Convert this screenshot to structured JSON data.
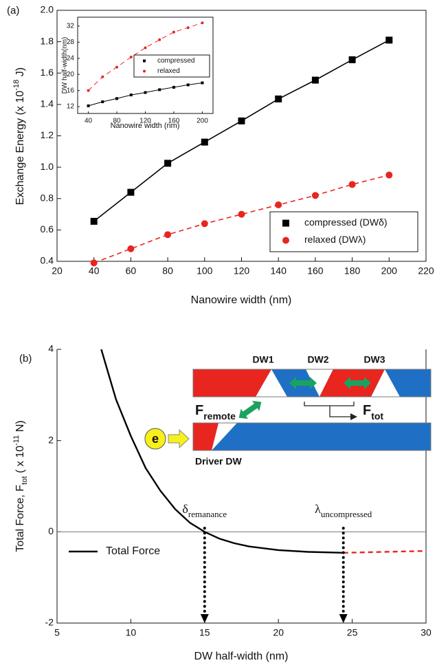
{
  "chart_data": [
    {
      "type": "line",
      "panel": "(a)",
      "xlabel": "Nanowire width (nm)",
      "ylabel": [
        "Exchange Energy (x 10",
        "-18",
        " J)"
      ],
      "x": [
        40,
        60,
        80,
        100,
        120,
        140,
        160,
        180,
        200
      ],
      "series": [
        {
          "name": "compressed (DWδ)",
          "color": "#000000",
          "marker": "square",
          "dash": false,
          "values": [
            0.655,
            0.84,
            1.025,
            1.16,
            1.295,
            1.435,
            1.555,
            1.685,
            1.81
          ]
        },
        {
          "name": "relaxed (DWλ)",
          "color": "#e8251f",
          "marker": "circle",
          "dash": true,
          "values": [
            0.39,
            0.48,
            0.57,
            0.64,
            0.7,
            0.76,
            0.82,
            0.89,
            0.95
          ]
        }
      ],
      "xlim": [
        20,
        220
      ],
      "xticks": [
        20,
        40,
        60,
        80,
        100,
        120,
        140,
        160,
        180,
        200,
        220
      ],
      "ylim": [
        0.4,
        2.0
      ],
      "yticks": [
        0.4,
        0.6,
        0.8,
        {
          "value": 1,
          "label": "1.0"
        },
        1.2,
        1.4,
        1.6,
        1.8,
        {
          "value": 2,
          "label": "2.0"
        }
      ],
      "legend": "lower right"
    },
    {
      "type": "line",
      "xlabel": "Nanowire width (nm)",
      "ylabel": [
        "DW half-width(nm)"
      ],
      "x": [
        40,
        60,
        80,
        100,
        120,
        140,
        160,
        180,
        200
      ],
      "series": [
        {
          "name": "compressed",
          "color": "#000000",
          "marker": "square",
          "dash": false,
          "values": [
            12.2,
            13.2,
            14,
            14.9,
            15.5,
            16.2,
            16.8,
            17.4,
            17.9
          ]
        },
        {
          "name": "relaxed",
          "color": "#e8251f",
          "marker": "circle",
          "dash": true,
          "values": [
            16,
            19.4,
            21.8,
            24.3,
            26.6,
            28.6,
            30.5,
            31.6,
            32.8
          ]
        }
      ],
      "xlim": [
        25,
        215
      ],
      "xticks": [
        40,
        80,
        120,
        160,
        200
      ],
      "ylim": [
        10.3,
        34.2
      ],
      "yticks": [
        12,
        16,
        20,
        24,
        28,
        32
      ],
      "legend": "center right"
    },
    {
      "type": "line",
      "panel": "(b)",
      "xlabel": "DW half-width (nm)",
      "ylabel": [
        "Total Force, F",
        "tot",
        " ( x 10",
        "-11",
        " N)"
      ],
      "series": [
        {
          "name": "Total Force",
          "color": "#000000",
          "dash": false,
          "x": [
            8,
            9,
            10,
            11,
            12,
            13,
            14,
            15,
            16,
            17,
            18,
            20,
            22,
            24.4
          ],
          "values": [
            4,
            2.9,
            2.1,
            1.4,
            0.9,
            0.5,
            0.2,
            0,
            -0.15,
            -0.25,
            -0.32,
            -0.4,
            -0.44,
            -0.46
          ]
        },
        {
          "color": "#e8251f",
          "dash": true,
          "x": [
            24.4,
            30
          ],
          "values": [
            -0.46,
            -0.42
          ]
        }
      ],
      "xlim": [
        5,
        30
      ],
      "xticks": [
        5,
        10,
        15,
        20,
        25,
        30
      ],
      "ylim": [
        -2,
        4
      ],
      "yticks": [
        -2,
        0,
        2,
        4
      ],
      "hline": 0,
      "markers": [
        {
          "x": 15,
          "label": "δ",
          "sub": "remanance"
        },
        {
          "x": 24.4,
          "label": "λ",
          "sub": "uncompressed"
        }
      ],
      "legend": "center left",
      "diagram": {
        "dw1": "DW1",
        "dw2": "DW2",
        "dw3": "DW3",
        "f_remote": [
          "F",
          "remote"
        ],
        "f_tot": [
          "F",
          "tot"
        ],
        "driver": "Driver DW",
        "electron": "e"
      }
    }
  ]
}
